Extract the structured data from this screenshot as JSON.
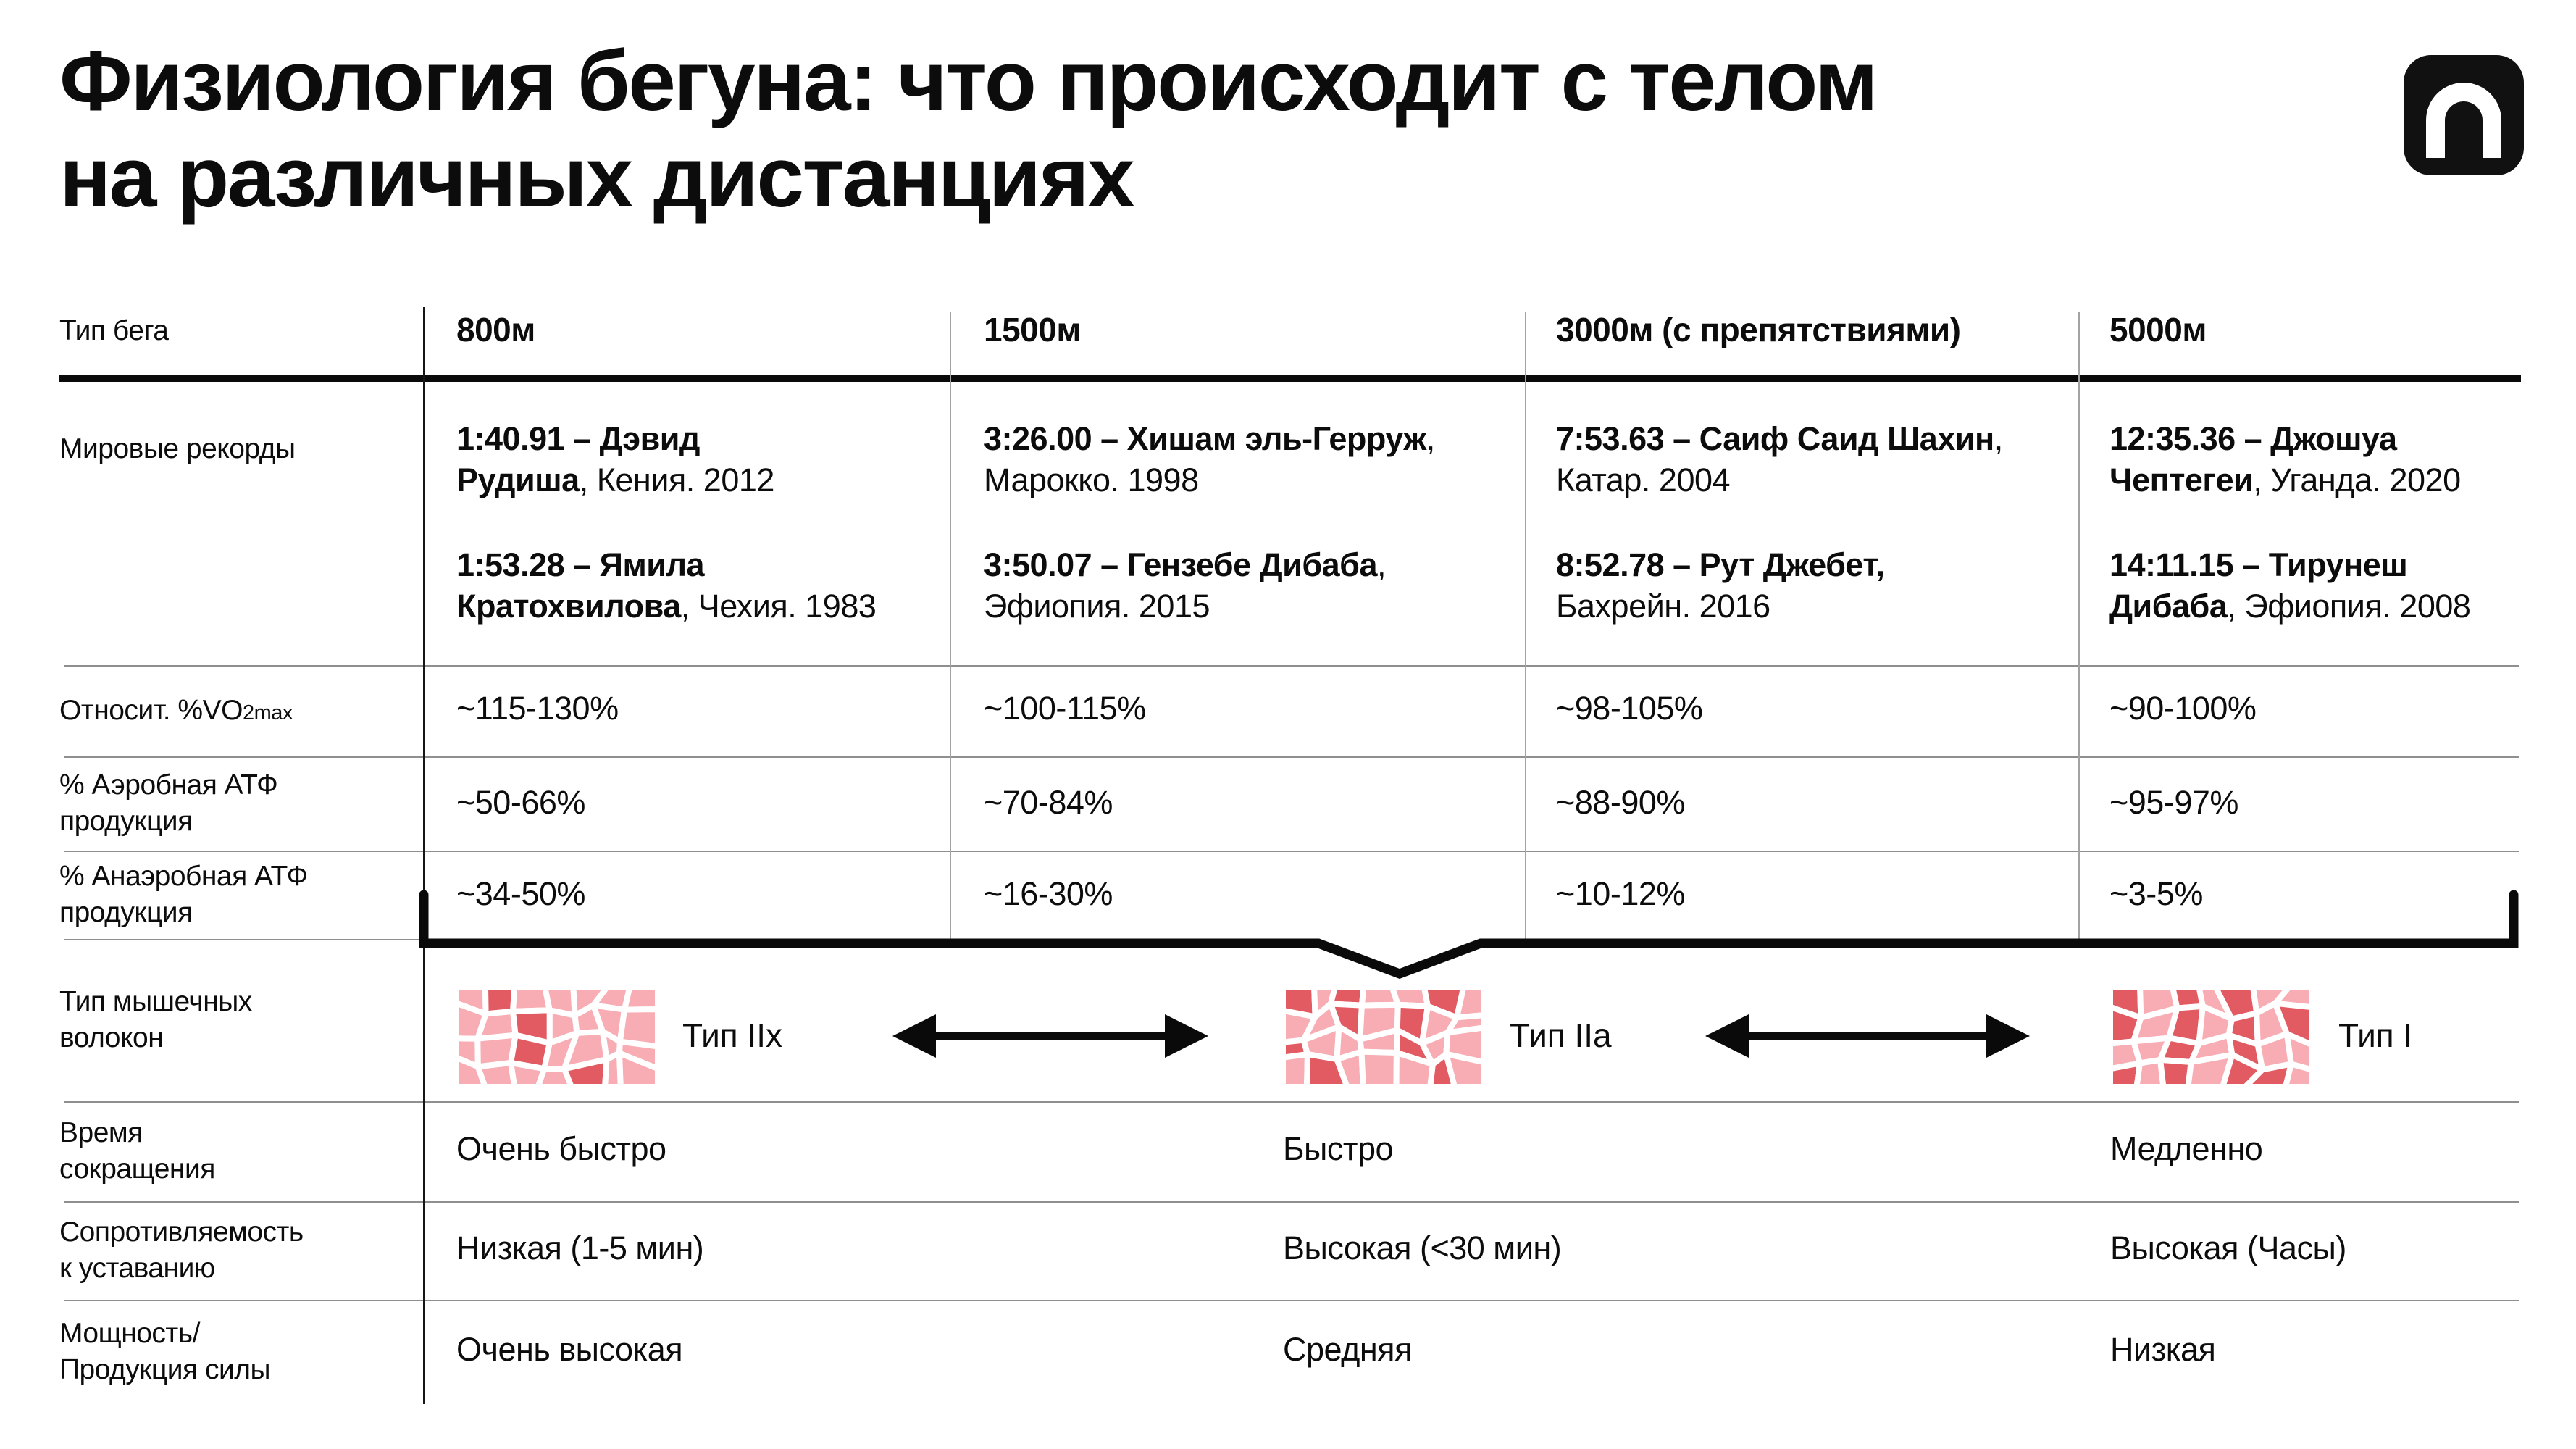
{
  "title": "Физиология бегуна: что происходит с телом\nна различных дистанциях",
  "logo": {
    "label": "logo"
  },
  "colors": {
    "text": "#0c0c0c",
    "line_gray": "#8f8f8f",
    "fiber_pink": "#f7adb3",
    "fiber_red": "#e25a62",
    "logo_bg": "#111111"
  },
  "table": {
    "run_type_label": "Тип бега",
    "columns": [
      "800м",
      "1500м",
      "3000м (с препятствиями)",
      "5000м"
    ],
    "world_records_label": "Мировые рекорды",
    "records": [
      [
        {
          "bold": "1:40.91 – Дэвид\nРудиша",
          "rest": ", Кения. 2012"
        },
        {
          "bold": "1:53.28 – Ямила\nКратохвилова",
          "rest": ", Чехия. 1983"
        }
      ],
      [
        {
          "bold": "3:26.00 – Хишам эль-Герруж",
          "rest": ",\nМарокко. 1998"
        },
        {
          "bold": "3:50.07 – Гензебе Дибаба",
          "rest": ",\nЭфиопия. 2015"
        }
      ],
      [
        {
          "bold": "7:53.63 – Саиф Саид Шахин",
          "rest": ",\nКатар. 2004"
        },
        {
          "bold": "8:52.78 – Рут Джебет,",
          "rest": "\nБахрейн. 2016"
        }
      ],
      [
        {
          "bold": "12:35.36 – Джошуа\nЧептегеи",
          "rest": ", Уганда. 2020"
        },
        {
          "bold": "14:11.15 – Тирунеш\nДибаба",
          "rest": ", Эфиопия. 2008"
        }
      ]
    ],
    "vo2": {
      "label_prefix": "Относит. %VO",
      "label_sub": "2max",
      "values": [
        "~115-130%",
        "~100-115%",
        "~98-105%",
        "~90-100%"
      ]
    },
    "aerobic": {
      "label": "% Аэробная АТФ\nпродукция",
      "values": [
        "~50-66%",
        "~70-84%",
        "~88-90%",
        "~95-97%"
      ]
    },
    "anaerobic": {
      "label": "% Анаэробная АТФ\nпродукция",
      "values": [
        "~34-50%",
        "~16-30%",
        "~10-12%",
        "~3-5%"
      ]
    },
    "fibers": {
      "label": "Тип мышечных\nволокон",
      "types": [
        {
          "label": "Тип IIx"
        },
        {
          "label": "Тип IIa"
        },
        {
          "label": "Тип I"
        }
      ]
    },
    "contraction": {
      "label": "Время\nсокращения",
      "values": [
        "Очень быстро",
        "Быстро",
        "Медленно"
      ]
    },
    "fatigue": {
      "label": "Сопротивляемость\nк уставанию",
      "values": [
        "Низкая (1-5 мин)",
        "Высокая (<30 мин)",
        "Высокая (Часы)"
      ]
    },
    "power": {
      "label": "Мощность/\nПродукция силы",
      "values": [
        "Очень высокая",
        "Средняя",
        "Низкая"
      ]
    }
  },
  "chart_data": {
    "type": "table",
    "title": "Физиология бегуна: что происходит с телом на различных дистанциях",
    "columns": [
      "Тип бега",
      "800м",
      "1500м",
      "3000м (с препятствиями)",
      "5000м"
    ],
    "rows": [
      {
        "label": "Мировые рекорды",
        "values": [
          "1:40.91 – Дэвид Рудиша, Кения. 2012 / 1:53.28 – Ямила Кратохвилова, Чехия. 1983",
          "3:26.00 – Хишам эль-Герруж, Марокко. 1998 / 3:50.07 – Гензебе Дибаба, Эфиопия. 2015",
          "7:53.63 – Саиф Саид Шахин, Катар. 2004 / 8:52.78 – Рут Джебет, Бахрейн. 2016",
          "12:35.36 – Джошуа Чептегеи, Уганда. 2020 / 14:11.15 – Тирунеш Дибаба, Эфиопия. 2008"
        ]
      },
      {
        "label": "Относит. %VO2max",
        "values": [
          "~115-130%",
          "~100-115%",
          "~98-105%",
          "~90-100%"
        ]
      },
      {
        "label": "% Аэробная АТФ продукция",
        "values": [
          "~50-66%",
          "~70-84%",
          "~88-90%",
          "~95-97%"
        ]
      },
      {
        "label": "% Анаэробная АТФ продукция",
        "values": [
          "~34-50%",
          "~16-30%",
          "~10-12%",
          "~3-5%"
        ]
      },
      {
        "label": "Тип мышечных волокон",
        "values": [
          "Тип IIx",
          "Тип IIa",
          "Тип I"
        ]
      },
      {
        "label": "Время сокращения",
        "values": [
          "Очень быстро",
          "Быстро",
          "Медленно"
        ]
      },
      {
        "label": "Сопротивляемость к уставанию",
        "values": [
          "Низкая (1-5 мин)",
          "Высокая (<30 мин)",
          "Высокая (Часы)"
        ]
      },
      {
        "label": "Мощность/Продукция силы",
        "values": [
          "Очень высокая",
          "Средняя",
          "Низкая"
        ]
      }
    ]
  }
}
